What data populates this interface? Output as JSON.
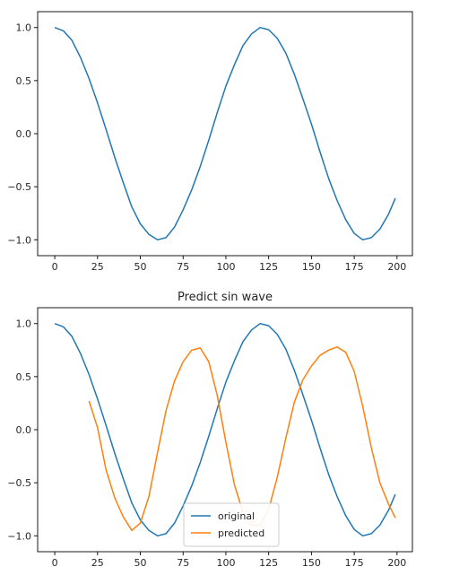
{
  "chart_data": [
    {
      "type": "line",
      "title": "",
      "xlabel": "",
      "ylabel": "",
      "xlim": [
        -10,
        209
      ],
      "ylim": [
        -1.15,
        1.15
      ],
      "xticks": [
        0,
        25,
        50,
        75,
        100,
        125,
        150,
        175,
        200
      ],
      "yticks": [
        1.0,
        0.5,
        0.0,
        -0.5,
        -1.0
      ],
      "xtick_labels": [
        "0",
        "25",
        "50",
        "75",
        "100",
        "125",
        "150",
        "175",
        "200"
      ],
      "ytick_labels": [
        "1.0",
        "0.5",
        "0.0",
        "−0.5",
        "−1.0"
      ],
      "grid": false,
      "legend": null,
      "series": [
        {
          "color": "#1f77b4",
          "x": [
            0,
            5,
            10,
            15,
            20,
            25,
            30,
            35,
            40,
            45,
            50,
            55,
            60,
            65,
            70,
            75,
            80,
            85,
            90,
            95,
            100,
            105,
            110,
            115,
            120,
            125,
            130,
            135,
            140,
            145,
            150,
            155,
            160,
            165,
            170,
            175,
            180,
            185,
            190,
            195,
            199
          ],
          "y": [
            1.0,
            0.97,
            0.88,
            0.72,
            0.52,
            0.29,
            0.04,
            -0.22,
            -0.46,
            -0.69,
            -0.85,
            -0.95,
            -1.0,
            -0.98,
            -0.88,
            -0.72,
            -0.53,
            -0.31,
            -0.06,
            0.2,
            0.45,
            0.65,
            0.83,
            0.94,
            1.0,
            0.98,
            0.9,
            0.76,
            0.56,
            0.33,
            0.09,
            -0.17,
            -0.42,
            -0.63,
            -0.81,
            -0.94,
            -1.0,
            -0.98,
            -0.9,
            -0.76,
            -0.61
          ]
        }
      ]
    },
    {
      "type": "line",
      "title": "Predict sin wave",
      "xlabel": "",
      "ylabel": "",
      "xlim": [
        -10,
        209
      ],
      "ylim": [
        -1.15,
        1.15
      ],
      "xticks": [
        0,
        25,
        50,
        75,
        100,
        125,
        150,
        175,
        200
      ],
      "yticks": [
        1.0,
        0.5,
        0.0,
        -0.5,
        -1.0
      ],
      "xtick_labels": [
        "0",
        "25",
        "50",
        "75",
        "100",
        "125",
        "150",
        "175",
        "200"
      ],
      "ytick_labels": [
        "1.0",
        "0.5",
        "0.0",
        "−0.5",
        "−1.0"
      ],
      "grid": false,
      "legend": "lower-center",
      "series": [
        {
          "name": "original",
          "color": "#1f77b4",
          "x": [
            0,
            5,
            10,
            15,
            20,
            25,
            30,
            35,
            40,
            45,
            50,
            55,
            60,
            65,
            70,
            75,
            80,
            85,
            90,
            95,
            100,
            105,
            110,
            115,
            120,
            125,
            130,
            135,
            140,
            145,
            150,
            155,
            160,
            165,
            170,
            175,
            180,
            185,
            190,
            195,
            199
          ],
          "y": [
            1.0,
            0.97,
            0.88,
            0.72,
            0.52,
            0.29,
            0.04,
            -0.22,
            -0.46,
            -0.69,
            -0.85,
            -0.95,
            -1.0,
            -0.98,
            -0.88,
            -0.72,
            -0.53,
            -0.31,
            -0.06,
            0.2,
            0.45,
            0.65,
            0.83,
            0.94,
            1.0,
            0.98,
            0.9,
            0.76,
            0.56,
            0.33,
            0.09,
            -0.17,
            -0.42,
            -0.63,
            -0.81,
            -0.94,
            -1.0,
            -0.98,
            -0.9,
            -0.76,
            -0.61
          ]
        },
        {
          "name": "predicted",
          "color": "#ff7f0e",
          "x": [
            20,
            25,
            30,
            35,
            40,
            45,
            50,
            55,
            60,
            65,
            70,
            75,
            80,
            85,
            90,
            95,
            100,
            105,
            110,
            115,
            120,
            125,
            130,
            135,
            140,
            145,
            150,
            155,
            160,
            165,
            170,
            175,
            180,
            185,
            190,
            195,
            199
          ],
          "y": [
            0.27,
            0.02,
            -0.38,
            -0.64,
            -0.82,
            -0.95,
            -0.88,
            -0.63,
            -0.22,
            0.18,
            0.46,
            0.64,
            0.75,
            0.77,
            0.64,
            0.32,
            -0.12,
            -0.52,
            -0.78,
            -0.9,
            -0.9,
            -0.75,
            -0.45,
            -0.08,
            0.26,
            0.47,
            0.6,
            0.7,
            0.75,
            0.78,
            0.73,
            0.55,
            0.22,
            -0.17,
            -0.5,
            -0.7,
            -0.83
          ]
        }
      ]
    }
  ]
}
